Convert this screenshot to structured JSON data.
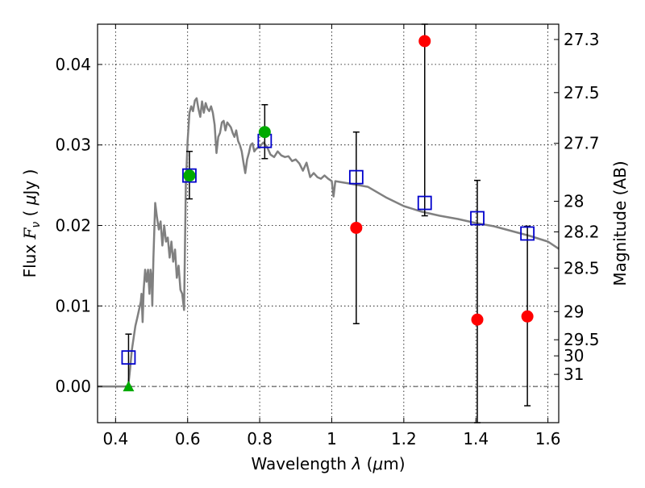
{
  "chart_data": {
    "type": "scatter",
    "xlabel_prefix": "Wavelength  ",
    "xlabel_lambda": "λ",
    "xlabel_unit_open": " (",
    "xlabel_mu": "μ",
    "xlabel_unit_close": "m)",
    "ylabel_prefix": "Flux  ",
    "ylabel_symbol": "F",
    "ylabel_sub": "ν",
    "ylabel_unit_open": "  ( ",
    "ylabel_mu": "μ",
    "ylabel_unit_close": "Jy )",
    "y2label": "Magnitude (AB)",
    "xlim": [
      0.35,
      1.63
    ],
    "ylim": [
      -0.0045,
      0.045
    ],
    "grid": true,
    "x_ticks": [
      {
        "value": 0.4,
        "label": "0.4"
      },
      {
        "value": 0.6,
        "label": "0.6"
      },
      {
        "value": 0.8,
        "label": "0.8"
      },
      {
        "value": 1.0,
        "label": "1"
      },
      {
        "value": 1.2,
        "label": "1.2"
      },
      {
        "value": 1.4,
        "label": "1.4"
      },
      {
        "value": 1.6,
        "label": "1.6"
      }
    ],
    "y_ticks": [
      {
        "value": 0.0,
        "label": "0.00"
      },
      {
        "value": 0.01,
        "label": "0.01"
      },
      {
        "value": 0.02,
        "label": "0.02"
      },
      {
        "value": 0.03,
        "label": "0.03"
      },
      {
        "value": 0.04,
        "label": "0.04"
      }
    ],
    "mag_ticks": [
      {
        "value": 0.0431,
        "label": "27.3"
      },
      {
        "value": 0.0365,
        "label": "27.5"
      },
      {
        "value": 0.0302,
        "label": "27.7"
      },
      {
        "value": 0.023,
        "label": "28"
      },
      {
        "value": 0.0192,
        "label": "28.2"
      },
      {
        "value": 0.0147,
        "label": "28.5"
      },
      {
        "value": 0.0093,
        "label": "29"
      },
      {
        "value": 0.0058,
        "label": "29.5"
      },
      {
        "value": 0.0038,
        "label": "30"
      },
      {
        "value": 0.0015,
        "label": "31"
      }
    ],
    "colors": {
      "model": "#808080",
      "model_points": "#0000cc",
      "detections": "#00aa00",
      "upper_limits": "#ff0000",
      "errorbars": "#000000",
      "zero_line": "#000000"
    },
    "series": [
      {
        "name": "SED model",
        "kind": "line",
        "points": [
          [
            0.35,
            0.0
          ],
          [
            0.43,
            0.0
          ],
          [
            0.435,
            0.0
          ],
          [
            0.44,
            0.002
          ],
          [
            0.445,
            0.0045
          ],
          [
            0.45,
            0.006
          ],
          [
            0.455,
            0.0075
          ],
          [
            0.46,
            0.0085
          ],
          [
            0.465,
            0.0095
          ],
          [
            0.47,
            0.0105
          ],
          [
            0.472,
            0.0115
          ],
          [
            0.475,
            0.008
          ],
          [
            0.478,
            0.012
          ],
          [
            0.482,
            0.0145
          ],
          [
            0.486,
            0.013
          ],
          [
            0.49,
            0.0145
          ],
          [
            0.494,
            0.0115
          ],
          [
            0.497,
            0.0145
          ],
          [
            0.5,
            0.0135
          ],
          [
            0.502,
            0.01
          ],
          [
            0.505,
            0.016
          ],
          [
            0.51,
            0.0228
          ],
          [
            0.515,
            0.021
          ],
          [
            0.52,
            0.0195
          ],
          [
            0.525,
            0.0205
          ],
          [
            0.53,
            0.0175
          ],
          [
            0.535,
            0.02
          ],
          [
            0.54,
            0.018
          ],
          [
            0.545,
            0.0185
          ],
          [
            0.55,
            0.016
          ],
          [
            0.555,
            0.018
          ],
          [
            0.56,
            0.0155
          ],
          [
            0.565,
            0.017
          ],
          [
            0.57,
            0.0135
          ],
          [
            0.575,
            0.015
          ],
          [
            0.58,
            0.012
          ],
          [
            0.585,
            0.0115
          ],
          [
            0.59,
            0.0095
          ],
          [
            0.595,
            0.025
          ],
          [
            0.6,
            0.0305
          ],
          [
            0.605,
            0.034
          ],
          [
            0.61,
            0.0348
          ],
          [
            0.615,
            0.0342
          ],
          [
            0.62,
            0.0355
          ],
          [
            0.625,
            0.0358
          ],
          [
            0.63,
            0.0345
          ],
          [
            0.635,
            0.0335
          ],
          [
            0.64,
            0.0354
          ],
          [
            0.645,
            0.034
          ],
          [
            0.65,
            0.0352
          ],
          [
            0.655,
            0.0345
          ],
          [
            0.66,
            0.0342
          ],
          [
            0.665,
            0.0348
          ],
          [
            0.67,
            0.034
          ],
          [
            0.675,
            0.0325
          ],
          [
            0.68,
            0.029
          ],
          [
            0.685,
            0.031
          ],
          [
            0.69,
            0.0315
          ],
          [
            0.695,
            0.0328
          ],
          [
            0.7,
            0.033
          ],
          [
            0.705,
            0.0318
          ],
          [
            0.71,
            0.0328
          ],
          [
            0.715,
            0.0325
          ],
          [
            0.72,
            0.0322
          ],
          [
            0.725,
            0.0315
          ],
          [
            0.73,
            0.031
          ],
          [
            0.735,
            0.0318
          ],
          [
            0.74,
            0.0305
          ],
          [
            0.745,
            0.03
          ],
          [
            0.75,
            0.0292
          ],
          [
            0.755,
            0.0278
          ],
          [
            0.76,
            0.0265
          ],
          [
            0.765,
            0.0282
          ],
          [
            0.77,
            0.029
          ],
          [
            0.775,
            0.03
          ],
          [
            0.78,
            0.0302
          ],
          [
            0.785,
            0.0292
          ],
          [
            0.79,
            0.0295
          ],
          [
            0.8,
            0.0298
          ],
          [
            0.81,
            0.0303
          ],
          [
            0.82,
            0.0298
          ],
          [
            0.83,
            0.0288
          ],
          [
            0.84,
            0.0285
          ],
          [
            0.85,
            0.0292
          ],
          [
            0.86,
            0.0287
          ],
          [
            0.87,
            0.0285
          ],
          [
            0.88,
            0.0286
          ],
          [
            0.89,
            0.028
          ],
          [
            0.9,
            0.0282
          ],
          [
            0.91,
            0.0277
          ],
          [
            0.92,
            0.0268
          ],
          [
            0.93,
            0.0278
          ],
          [
            0.94,
            0.026
          ],
          [
            0.95,
            0.0265
          ],
          [
            0.96,
            0.026
          ],
          [
            0.97,
            0.0258
          ],
          [
            0.98,
            0.0262
          ],
          [
            0.99,
            0.0258
          ],
          [
            1.0,
            0.0255
          ],
          [
            1.005,
            0.0236
          ],
          [
            1.01,
            0.0255
          ],
          [
            1.05,
            0.0252
          ],
          [
            1.1,
            0.0248
          ],
          [
            1.15,
            0.0235
          ],
          [
            1.2,
            0.0224
          ],
          [
            1.25,
            0.0217
          ],
          [
            1.3,
            0.0212
          ],
          [
            1.35,
            0.0208
          ],
          [
            1.4,
            0.0203
          ],
          [
            1.45,
            0.0199
          ],
          [
            1.5,
            0.0193
          ],
          [
            1.55,
            0.0187
          ],
          [
            1.6,
            0.018
          ],
          [
            1.63,
            0.0171
          ]
        ]
      },
      {
        "name": "Model band fluxes",
        "kind": "open-square",
        "points": [
          {
            "x": 0.436,
            "y": 0.0036
          },
          {
            "x": 0.605,
            "y": 0.0262
          },
          {
            "x": 0.814,
            "y": 0.0305
          },
          {
            "x": 1.068,
            "y": 0.026
          },
          {
            "x": 1.258,
            "y": 0.0228
          },
          {
            "x": 1.404,
            "y": 0.0209
          },
          {
            "x": 1.543,
            "y": 0.019
          }
        ]
      },
      {
        "name": "Observed (detected)",
        "kind": "filled-circle",
        "points": [
          {
            "x": 0.605,
            "y": 0.0262,
            "err_low": 0.0233,
            "err_high": 0.0292
          },
          {
            "x": 0.814,
            "y": 0.0316,
            "err_low": 0.0283,
            "err_high": 0.035
          }
        ]
      },
      {
        "name": "Observed (low S/N)",
        "kind": "filled-circle-red",
        "points": [
          {
            "x": 1.068,
            "y": 0.0197,
            "err_low": 0.0078,
            "err_high": 0.0316
          },
          {
            "x": 1.258,
            "y": 0.0429,
            "err_low": 0.0212,
            "err_high": 0.045
          },
          {
            "x": 1.404,
            "y": 0.0083,
            "err_low": -0.0045,
            "err_high": 0.0256
          },
          {
            "x": 1.543,
            "y": 0.0087,
            "err_low": -0.0024,
            "err_high": 0.0199
          }
        ]
      },
      {
        "name": "Blue band",
        "kind": "triangle",
        "points": [
          {
            "x": 0.436,
            "y": 0.0,
            "err_low": 0.0,
            "err_high": 0.0065
          }
        ]
      }
    ]
  }
}
